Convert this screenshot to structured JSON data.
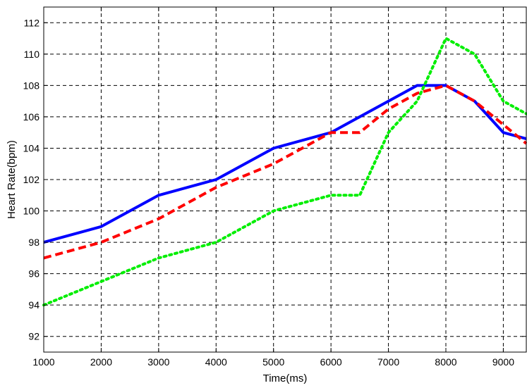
{
  "chart_data": {
    "type": "line",
    "title": "",
    "xlabel": "Time(ms)",
    "ylabel": "Heart Rate(bpm)",
    "xlim": [
      1000,
      9400
    ],
    "ylim": [
      91,
      113
    ],
    "xticks": [
      1000,
      2000,
      3000,
      4000,
      5000,
      6000,
      7000,
      8000,
      9000
    ],
    "yticks": [
      92,
      94,
      96,
      98,
      100,
      102,
      104,
      106,
      108,
      110,
      112
    ],
    "grid": true,
    "series": [
      {
        "color": "#0000ff",
        "linestyle": "solid",
        "x": [
          1000,
          2000,
          3000,
          4000,
          5000,
          6000,
          6500,
          7000,
          7500,
          8000,
          8500,
          9000,
          9400
        ],
        "y": [
          98,
          99,
          101,
          102,
          104,
          105,
          106,
          107,
          108,
          108,
          107,
          105,
          104.6
        ]
      },
      {
        "color": "#ff0000",
        "linestyle": "dashed",
        "x": [
          1000,
          2000,
          3000,
          4000,
          5000,
          6000,
          6500,
          7000,
          7500,
          8000,
          8500,
          9000,
          9400
        ],
        "y": [
          97,
          98,
          99.5,
          101.5,
          103,
          105,
          105,
          106.5,
          107.5,
          108,
          107,
          105.5,
          104.3
        ]
      },
      {
        "color": "#00ee00",
        "linestyle": "dotted",
        "x": [
          1000,
          2000,
          3000,
          4000,
          5000,
          6000,
          6500,
          7000,
          7500,
          8000,
          8500,
          9000,
          9400
        ],
        "y": [
          94,
          95.5,
          97,
          98,
          100,
          101,
          101,
          105,
          107,
          111,
          110,
          107,
          106.2
        ]
      }
    ]
  }
}
